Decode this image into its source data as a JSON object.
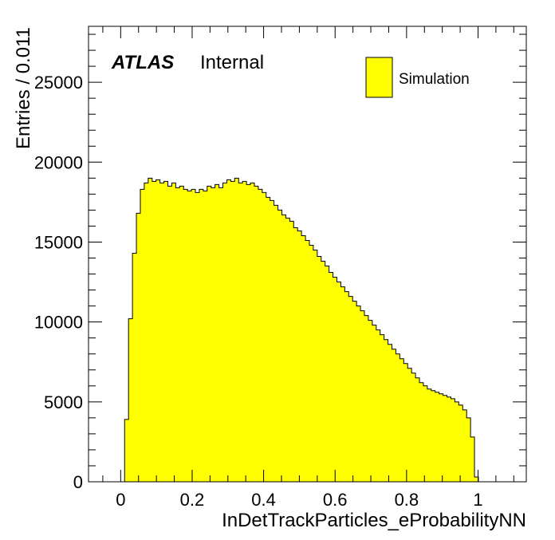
{
  "colors": {
    "fill": "#ffff00",
    "line": "#000000",
    "background": "#ffffff"
  },
  "chart_data": {
    "type": "bar",
    "histogram": true,
    "title": "",
    "xlabel": "InDetTrackParticles_eProbabilityNN",
    "ylabel": "Entries / 0.011",
    "xlim": [
      -0.09,
      1.135
    ],
    "ylim": [
      0,
      28500
    ],
    "bin_width": 0.011,
    "first_bin_low_edge": 0.0,
    "x_ticks": [
      0,
      0.2,
      0.4,
      0.6,
      0.8,
      1
    ],
    "x_tick_labels": [
      "0",
      "0.2",
      "0.4",
      "0.6",
      "0.8",
      "1"
    ],
    "y_ticks": [
      0,
      5000,
      10000,
      15000,
      20000,
      25000
    ],
    "y_tick_labels": [
      "0",
      "5000",
      "10000",
      "15000",
      "20000",
      "25000"
    ],
    "grid": false,
    "legend_position": "top-right",
    "annotations": {
      "experiment": "ATLAS",
      "status": "Internal"
    },
    "series": [
      {
        "name": "Simulation",
        "values": [
          0,
          3900,
          10200,
          14300,
          16800,
          18300,
          18700,
          19000,
          18800,
          18900,
          18700,
          18800,
          18500,
          18700,
          18400,
          18500,
          18300,
          18200,
          18300,
          18100,
          18300,
          18200,
          18500,
          18400,
          18600,
          18400,
          18700,
          18900,
          18800,
          19000,
          18700,
          18800,
          18600,
          18700,
          18500,
          18300,
          18100,
          17800,
          17600,
          17300,
          17000,
          16700,
          16500,
          16300,
          15900,
          15700,
          15400,
          15100,
          14800,
          14500,
          14100,
          13800,
          13500,
          13100,
          12800,
          12500,
          12200,
          11900,
          11600,
          11300,
          11000,
          10700,
          10400,
          10100,
          9800,
          9500,
          9200,
          8900,
          8600,
          8300,
          8000,
          7700,
          7400,
          7100,
          6800,
          6500,
          6200,
          6000,
          5800,
          5700,
          5600,
          5500,
          5400,
          5300,
          5200,
          5000,
          4800,
          4500,
          4000,
          2800,
          300
        ]
      }
    ]
  }
}
